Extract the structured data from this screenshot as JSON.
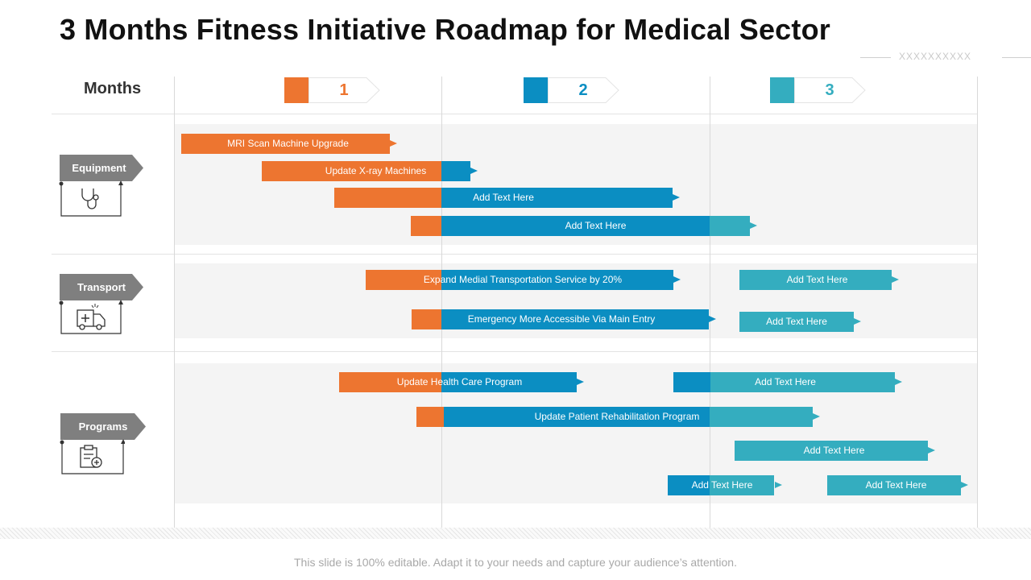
{
  "title": "3 Months Fitness Initiative Roadmap for Medical Sector",
  "decoration_text": "XXXXXXXXXX",
  "months_label": "Months",
  "months": [
    {
      "label": "1",
      "color": "#ed7530"
    },
    {
      "label": "2",
      "color": "#0b8ec2"
    },
    {
      "label": "3",
      "color": "#34adbf"
    }
  ],
  "categories": [
    {
      "label": "Equipment",
      "icon": "stethoscope-icon"
    },
    {
      "label": "Transport",
      "icon": "ambulance-icon"
    },
    {
      "label": "Programs",
      "icon": "clipboard-add-icon"
    }
  ],
  "colors": {
    "orange": "#ed7530",
    "blue": "#0b8ec2",
    "teal": "#34adbf",
    "category_gray": "#7f7f7f"
  },
  "tasks": {
    "equipment": [
      "MRI Scan Machine Upgrade",
      "Update X-ray Machines",
      "Add Text Here",
      "Add Text Here"
    ],
    "transport": [
      "Expand Medial Transportation Service by 20%",
      "Add Text Here",
      "Emergency More Accessible Via Main Entry",
      "Add Text Here"
    ],
    "programs": [
      "Update Health Care Program",
      "Add Text Here",
      "Update Patient Rehabilitation Program",
      "Add Text Here",
      "Add Text Here",
      "Add Text Here"
    ]
  },
  "footer": "This slide is 100% editable. Adapt it to your needs and capture your audience’s attention."
}
